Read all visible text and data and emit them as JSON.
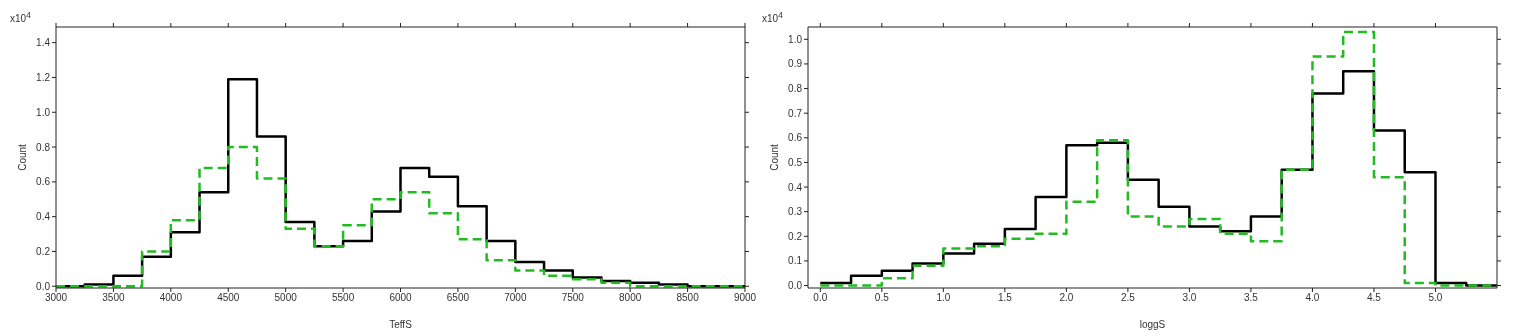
{
  "chart_data": [
    {
      "type": "histogram",
      "xlabel": "TeffS",
      "ylabel": "Count",
      "annotations": [
        "x10$^{4}$"
      ],
      "bins": [
        3000,
        3250,
        3500,
        3750,
        4000,
        4250,
        4500,
        4750,
        5000,
        5250,
        5500,
        5750,
        6000,
        6250,
        6500,
        6750,
        7000,
        7250,
        7500,
        7750,
        8000,
        8250,
        8500,
        8750,
        9000
      ],
      "series": [
        {
          "color": "#000000",
          "line_style": "solid",
          "values": [
            0.0,
            0.01,
            0.06,
            0.17,
            0.31,
            0.54,
            1.19,
            0.86,
            0.37,
            0.23,
            0.26,
            0.43,
            0.68,
            0.63,
            0.46,
            0.26,
            0.14,
            0.09,
            0.05,
            0.03,
            0.02,
            0.01,
            0.0,
            0.0
          ]
        },
        {
          "color": "#22bb22",
          "line_style": "dashed",
          "values": [
            0.0,
            0.0,
            0.0,
            0.2,
            0.38,
            0.68,
            0.8,
            0.62,
            0.33,
            0.23,
            0.35,
            0.5,
            0.54,
            0.42,
            0.27,
            0.15,
            0.09,
            0.06,
            0.04,
            0.02,
            0.0,
            0.0,
            0.0,
            0.0
          ]
        }
      ],
      "xlim": [
        3000,
        9000
      ],
      "xticks": [
        3000,
        3500,
        4000,
        4500,
        5000,
        5500,
        6000,
        6500,
        7000,
        7500,
        8000,
        8500,
        9000
      ],
      "ylim": [
        -0.01,
        1.49
      ],
      "yticks": [
        {
          "value": 0,
          "label": "0.0"
        },
        {
          "value": 0.2,
          "label": "0.2"
        },
        {
          "value": 0.4,
          "label": "0.4"
        },
        {
          "value": 0.6,
          "label": "0.6"
        },
        {
          "value": 0.8,
          "label": "0.8"
        },
        {
          "value": 1,
          "label": "1.0"
        },
        {
          "value": 1.2,
          "label": "1.2"
        },
        {
          "value": 1.4,
          "label": "1.4"
        }
      ],
      "grid": false,
      "legend": false
    },
    {
      "type": "histogram",
      "xlabel": "loggS",
      "ylabel": "Count",
      "annotations": [
        "x10$^{4}$"
      ],
      "bins": [
        0,
        0.25,
        0.5,
        0.75,
        1,
        1.25,
        1.5,
        1.75,
        2,
        2.25,
        2.5,
        2.75,
        3,
        3.25,
        3.5,
        3.75,
        4,
        4.25,
        4.5,
        4.75,
        5,
        5.25,
        5.5
      ],
      "series": [
        {
          "color": "#000000",
          "line_style": "solid",
          "values": [
            0.01,
            0.04,
            0.06,
            0.09,
            0.13,
            0.17,
            0.23,
            0.36,
            0.57,
            0.58,
            0.43,
            0.32,
            0.24,
            0.22,
            0.28,
            0.47,
            0.78,
            0.87,
            0.63,
            0.46,
            0.01,
            0.0
          ]
        },
        {
          "color": "#22bb22",
          "line_style": "dashed",
          "values": [
            0.0,
            0.0,
            0.03,
            0.08,
            0.15,
            0.16,
            0.19,
            0.21,
            0.34,
            0.59,
            0.28,
            0.24,
            0.27,
            0.21,
            0.18,
            0.47,
            0.93,
            1.03,
            0.44,
            0.01,
            0.0,
            0.0
          ]
        }
      ],
      "xlim": [
        -0.1,
        5.5
      ],
      "xticks": [
        {
          "value": 0,
          "label": "0.0"
        },
        {
          "value": 0.5,
          "label": "0.5"
        },
        {
          "value": 1,
          "label": "1.0"
        },
        {
          "value": 1.5,
          "label": "1.5"
        },
        {
          "value": 2,
          "label": "2.0"
        },
        {
          "value": 2.5,
          "label": "2.5"
        },
        {
          "value": 3,
          "label": "3.0"
        },
        {
          "value": 3.5,
          "label": "3.5"
        },
        {
          "value": 4,
          "label": "4.0"
        },
        {
          "value": 4.5,
          "label": "4.5"
        },
        {
          "value": 5,
          "label": "5.0"
        }
      ],
      "ylim": [
        -0.01,
        1.05
      ],
      "yticks": [
        {
          "value": 0,
          "label": "0.0"
        },
        {
          "value": 0.1,
          "label": "0.1"
        },
        {
          "value": 0.2,
          "label": "0.2"
        },
        {
          "value": 0.3,
          "label": "0.3"
        },
        {
          "value": 0.4,
          "label": "0.4"
        },
        {
          "value": 0.5,
          "label": "0.5"
        },
        {
          "value": 0.6,
          "label": "0.6"
        },
        {
          "value": 0.7,
          "label": "0.7"
        },
        {
          "value": 0.8,
          "label": "0.8"
        },
        {
          "value": 0.9,
          "label": "0.9"
        },
        {
          "value": 1,
          "label": "1.0"
        }
      ],
      "grid": false,
      "legend": false
    }
  ]
}
